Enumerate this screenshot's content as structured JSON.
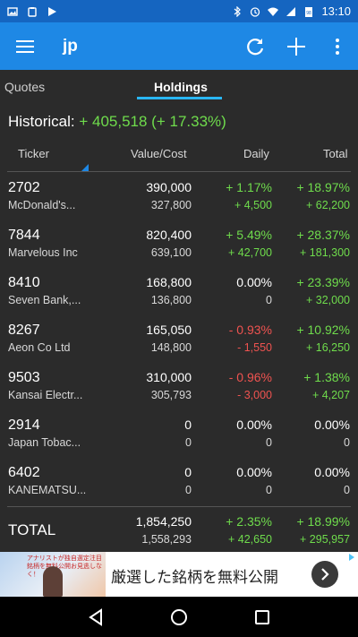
{
  "status_bar": {
    "time": "13:10",
    "icons": [
      "image-icon",
      "clipboard-icon",
      "play-icon",
      "bluetooth-icon",
      "alarm-icon",
      "wifi-icon",
      "signal-icon",
      "battery-icon"
    ],
    "battery_level": "98"
  },
  "app_bar": {
    "title": "jp",
    "icons": [
      "menu-icon",
      "refresh-icon",
      "add-icon",
      "more-vert-icon"
    ],
    "color": "#1e88e5"
  },
  "tabs": [
    {
      "label": "Quotes",
      "selected": false
    },
    {
      "label": "Holdings",
      "selected": true
    }
  ],
  "historical": {
    "label": "Historical:",
    "value": "+ 405,518 (+ 17.33%)"
  },
  "columns": {
    "ticker": "Ticker",
    "value_cost": "Value/Cost",
    "daily": "Daily",
    "total": "Total"
  },
  "holdings": [
    {
      "ticker": "2702",
      "name": "McDonald's...",
      "value": "390,000",
      "cost": "327,800",
      "daily_pct": "+ 1.17%",
      "daily_amt": "+ 4,500",
      "total_pct": "+ 18.97%",
      "total_amt": "+ 62,200",
      "daily_sign": "pos",
      "total_sign": "pos"
    },
    {
      "ticker": "7844",
      "name": "Marvelous Inc",
      "value": "820,400",
      "cost": "639,100",
      "daily_pct": "+ 5.49%",
      "daily_amt": "+ 42,700",
      "total_pct": "+ 28.37%",
      "total_amt": "+ 181,300",
      "daily_sign": "pos",
      "total_sign": "pos"
    },
    {
      "ticker": "8410",
      "name": "Seven Bank,...",
      "value": "168,800",
      "cost": "136,800",
      "daily_pct": "0.00%",
      "daily_amt": "0",
      "total_pct": "+ 23.39%",
      "total_amt": "+ 32,000",
      "daily_sign": "zero",
      "total_sign": "pos"
    },
    {
      "ticker": "8267",
      "name": "Aeon Co Ltd",
      "value": "165,050",
      "cost": "148,800",
      "daily_pct": "- 0.93%",
      "daily_amt": "- 1,550",
      "total_pct": "+ 10.92%",
      "total_amt": "+ 16,250",
      "daily_sign": "neg",
      "total_sign": "pos"
    },
    {
      "ticker": "9503",
      "name": "Kansai Electr...",
      "value": "310,000",
      "cost": "305,793",
      "daily_pct": "- 0.96%",
      "daily_amt": "- 3,000",
      "total_pct": "+ 1.38%",
      "total_amt": "+ 4,207",
      "daily_sign": "neg",
      "total_sign": "pos"
    },
    {
      "ticker": "2914",
      "name": "Japan Tobac...",
      "value": "0",
      "cost": "0",
      "daily_pct": "0.00%",
      "daily_amt": "0",
      "total_pct": "0.00%",
      "total_amt": "0",
      "daily_sign": "zero",
      "total_sign": "zero"
    },
    {
      "ticker": "6402",
      "name": "KANEMATSU...",
      "value": "0",
      "cost": "0",
      "daily_pct": "0.00%",
      "daily_amt": "0",
      "total_pct": "0.00%",
      "total_amt": "0",
      "daily_sign": "zero",
      "total_sign": "zero"
    }
  ],
  "total": {
    "label": "TOTAL",
    "value": "1,854,250",
    "cost": "1,558,293",
    "daily_pct": "+ 2.35%",
    "daily_amt": "+ 42,650",
    "total_pct": "+ 18.99%",
    "total_amt": "+ 295,957"
  },
  "ad": {
    "text": "厳選した銘柄を無料公開",
    "image_text": "アナリストが独自選定注目銘柄を無料公開お見逃しなく！",
    "icons": [
      "arrow-right-icon",
      "adchoices-icon"
    ]
  },
  "nav_bar": {
    "icons": [
      "back-icon",
      "home-icon",
      "recents-icon"
    ]
  },
  "colors": {
    "positive": "#6fdc4c",
    "negative": "#ef5350",
    "accent": "#29b6f6",
    "background": "#2b2b2b"
  }
}
